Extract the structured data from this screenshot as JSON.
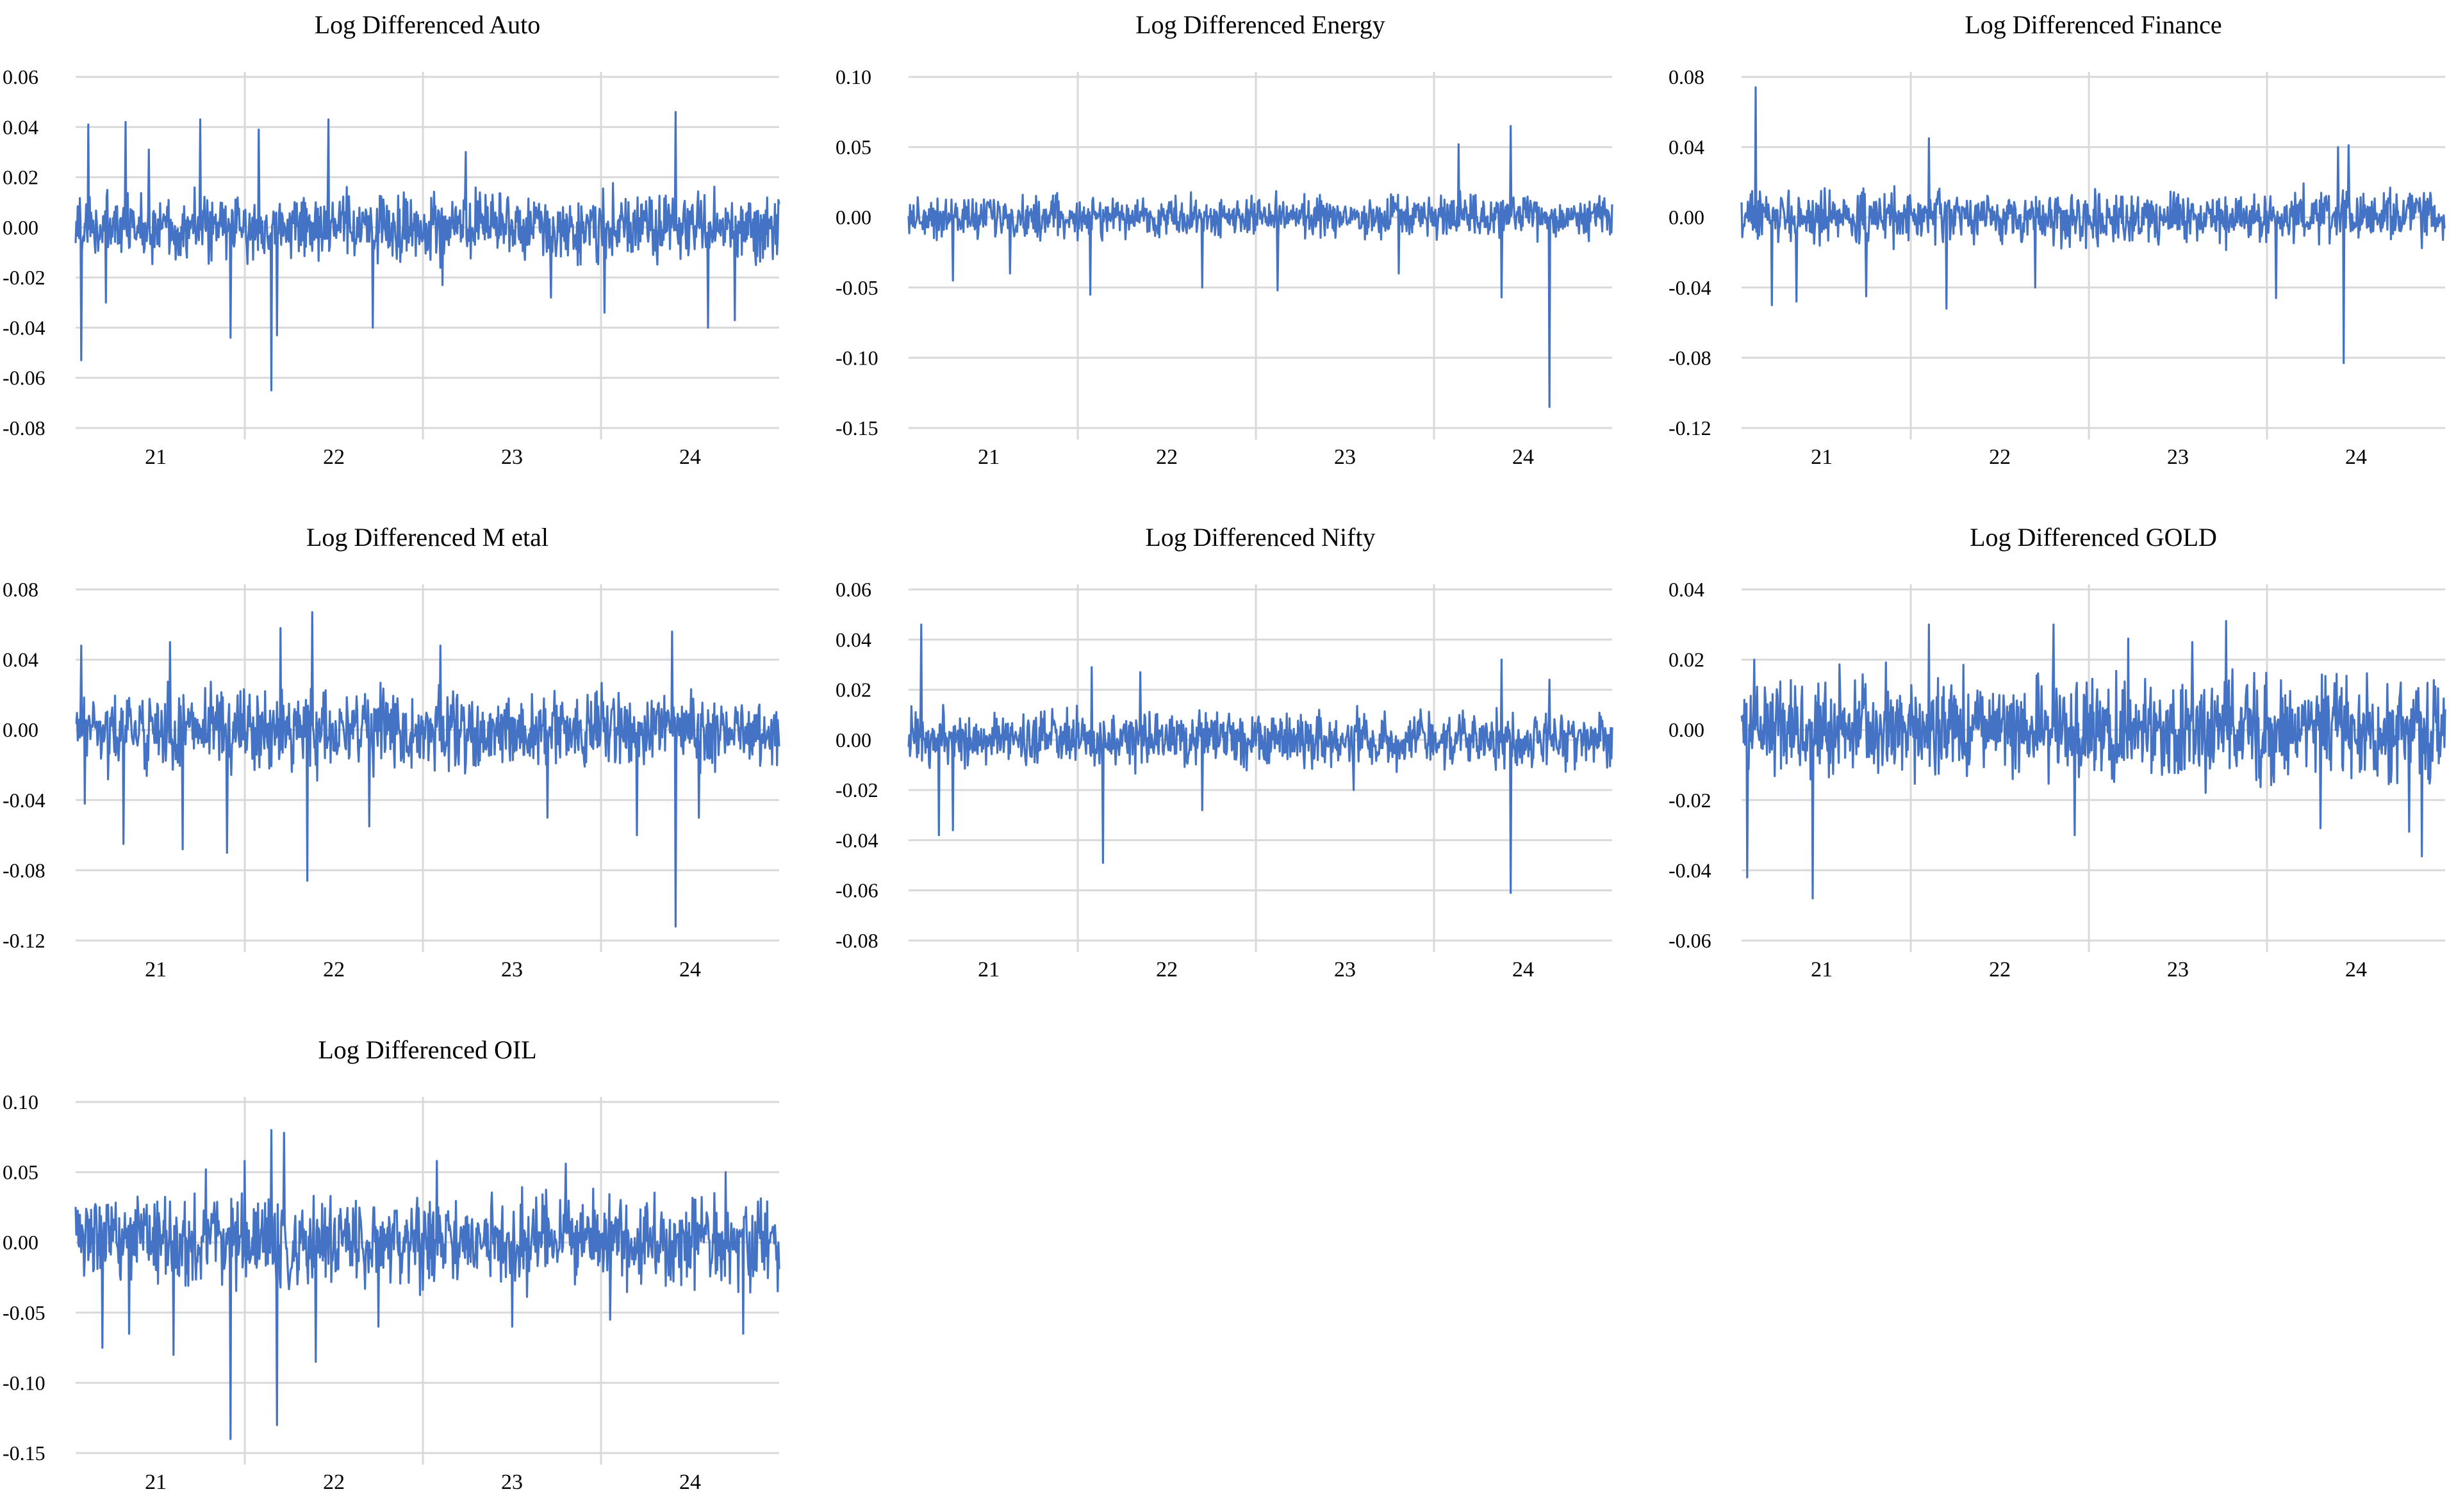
{
  "colors": {
    "line": "#4472c4",
    "grid": "#d9d9d9",
    "text": "#000000"
  },
  "chart_data": [
    {
      "type": "line",
      "title": "Log Differenced Auto",
      "ylim": [
        -0.08,
        0.06
      ],
      "yticks": [
        0.06,
        0.04,
        0.02,
        0.0,
        -0.02,
        -0.04,
        -0.06,
        -0.08
      ],
      "ytick_labels": [
        "0.06",
        "0.04",
        "0.02",
        "0.00",
        "-0.02",
        "-0.04",
        "-0.06",
        "-0.08"
      ],
      "x_range": [
        2020.55,
        2024.5
      ],
      "xticks": [
        21,
        22,
        23,
        24
      ],
      "grid": true,
      "series": [
        {
          "noise_amp": 0.011,
          "x": [
            2020.58,
            2020.62,
            2020.72,
            2020.83,
            2020.96,
            2021.25,
            2021.42,
            2021.58,
            2021.65,
            2021.68,
            2021.97,
            2022.22,
            2022.61,
            2022.74,
            2023.22,
            2023.52,
            2023.92,
            2024.1,
            2024.25
          ],
          "y": [
            -0.053,
            0.041,
            -0.03,
            0.042,
            0.031,
            0.043,
            -0.044,
            0.039,
            -0.065,
            -0.043,
            0.043,
            -0.04,
            -0.023,
            0.03,
            -0.028,
            -0.034,
            0.046,
            -0.04,
            -0.037
          ]
        }
      ]
    },
    {
      "type": "line",
      "title": "Log Differenced Energy",
      "ylim": [
        -0.15,
        0.1
      ],
      "yticks": [
        0.1,
        0.05,
        0.0,
        -0.05,
        -0.1,
        -0.15
      ],
      "ytick_labels": [
        "0.10",
        "0.05",
        "0.00",
        "-0.05",
        "-0.10",
        "-0.15"
      ],
      "x_range": [
        2020.55,
        2024.5
      ],
      "xticks": [
        21,
        22,
        23,
        24
      ],
      "grid": true,
      "series": [
        {
          "noise_amp": 0.012,
          "x": [
            2020.8,
            2021.12,
            2021.57,
            2022.2,
            2022.62,
            2023.3,
            2023.64,
            2023.88,
            2023.93,
            2024.15
          ],
          "y": [
            -0.045,
            -0.04,
            -0.055,
            -0.05,
            -0.052,
            -0.04,
            0.052,
            -0.057,
            0.065,
            -0.135
          ]
        }
      ]
    },
    {
      "type": "line",
      "title": "Log Differenced Finance",
      "ylim": [
        -0.12,
        0.08
      ],
      "yticks": [
        0.08,
        0.04,
        0.0,
        -0.04,
        -0.08,
        -0.12
      ],
      "ytick_labels": [
        "0.08",
        "0.04",
        "0.00",
        "-0.04",
        "-0.08",
        "-0.12"
      ],
      "x_range": [
        2020.55,
        2024.5
      ],
      "xticks": [
        21,
        22,
        23,
        24
      ],
      "grid": true,
      "series": [
        {
          "noise_amp": 0.012,
          "x": [
            2020.63,
            2020.72,
            2020.86,
            2021.25,
            2021.6,
            2021.7,
            2022.2,
            2023.55,
            2023.9,
            2023.93,
            2023.96
          ],
          "y": [
            0.074,
            -0.05,
            -0.048,
            -0.045,
            0.045,
            -0.052,
            -0.04,
            -0.046,
            0.04,
            -0.083,
            0.041
          ]
        }
      ]
    },
    {
      "type": "line",
      "title": "Log Differenced M etal",
      "ylim": [
        -0.12,
        0.08
      ],
      "yticks": [
        0.08,
        0.04,
        0.0,
        -0.04,
        -0.08,
        -0.12
      ],
      "ytick_labels": [
        "0.08",
        "0.04",
        "0.00",
        "-0.04",
        "-0.08",
        "-0.12"
      ],
      "x_range": [
        2020.55,
        2024.5
      ],
      "xticks": [
        21,
        22,
        23,
        24
      ],
      "grid": true,
      "series": [
        {
          "noise_amp": 0.018,
          "x": [
            2020.58,
            2020.6,
            2020.82,
            2021.08,
            2021.15,
            2021.4,
            2021.7,
            2021.85,
            2021.88,
            2022.2,
            2022.6,
            2023.2,
            2023.7,
            2023.9,
            2023.92,
            2024.05
          ],
          "y": [
            0.048,
            -0.042,
            -0.065,
            0.05,
            -0.068,
            -0.07,
            0.058,
            -0.086,
            0.067,
            -0.055,
            0.048,
            -0.05,
            -0.06,
            0.056,
            -0.112,
            -0.05
          ]
        }
      ]
    },
    {
      "type": "line",
      "title": "Log Differenced Nifty",
      "ylim": [
        -0.08,
        0.06
      ],
      "yticks": [
        0.06,
        0.04,
        0.02,
        0.0,
        -0.02,
        -0.04,
        -0.06,
        -0.08
      ],
      "ytick_labels": [
        "0.06",
        "0.04",
        "0.02",
        "0.00",
        "-0.02",
        "-0.04",
        "-0.06",
        "-0.08"
      ],
      "x_range": [
        2020.55,
        2024.5
      ],
      "xticks": [
        21,
        22,
        23,
        24
      ],
      "grid": true,
      "series": [
        {
          "noise_amp": 0.009,
          "x": [
            2020.62,
            2020.72,
            2020.8,
            2021.58,
            2021.64,
            2021.85,
            2022.2,
            2023.05,
            2023.88,
            2023.93,
            2024.15
          ],
          "y": [
            0.046,
            -0.038,
            -0.036,
            0.029,
            -0.049,
            0.027,
            -0.028,
            -0.02,
            0.032,
            -0.061,
            0.024
          ]
        }
      ]
    },
    {
      "type": "line",
      "title": "Log Differenced GOLD",
      "ylim": [
        -0.06,
        0.04
      ],
      "yticks": [
        0.04,
        0.02,
        0.0,
        -0.02,
        -0.04,
        -0.06
      ],
      "ytick_labels": [
        "0.04",
        "0.02",
        "0.00",
        "-0.02",
        "-0.04",
        "-0.06"
      ],
      "x_range": [
        2020.55,
        2024.5
      ],
      "xticks": [
        21,
        22,
        23,
        24
      ],
      "grid": true,
      "series": [
        {
          "noise_amp": 0.012,
          "x": [
            2020.58,
            2020.62,
            2020.95,
            2021.6,
            2022.3,
            2022.42,
            2022.72,
            2023.08,
            2023.27,
            2023.8,
            2024.3,
            2024.37
          ],
          "y": [
            -0.042,
            0.02,
            -0.048,
            0.03,
            0.03,
            -0.03,
            0.026,
            0.025,
            0.031,
            -0.028,
            -0.029,
            -0.036
          ]
        }
      ]
    },
    {
      "type": "line",
      "title": "Log Differenced OIL",
      "ylim": [
        -0.15,
        0.1
      ],
      "yticks": [
        0.1,
        0.05,
        0.0,
        -0.05,
        -0.1,
        -0.15
      ],
      "ytick_labels": [
        "0.10",
        "0.05",
        "0.00",
        "-0.05",
        "-0.10",
        "-0.15"
      ],
      "x_range": [
        2020.55,
        2024.5
      ],
      "xticks": [
        21,
        22,
        23,
        24
      ],
      "grid": true,
      "series": [
        {
          "noise_amp": 0.026,
          "x": [
            2020.7,
            2020.85,
            2021.1,
            2021.28,
            2021.42,
            2021.5,
            2021.65,
            2021.68,
            2021.72,
            2021.9,
            2022.25,
            2022.58,
            2023.0,
            2023.3,
            2023.55,
            2024.2,
            2024.3
          ],
          "y": [
            -0.075,
            -0.065,
            -0.08,
            0.052,
            -0.14,
            0.058,
            0.08,
            -0.13,
            0.078,
            -0.085,
            -0.06,
            0.058,
            -0.06,
            0.056,
            -0.055,
            0.05,
            -0.065
          ]
        }
      ]
    }
  ]
}
